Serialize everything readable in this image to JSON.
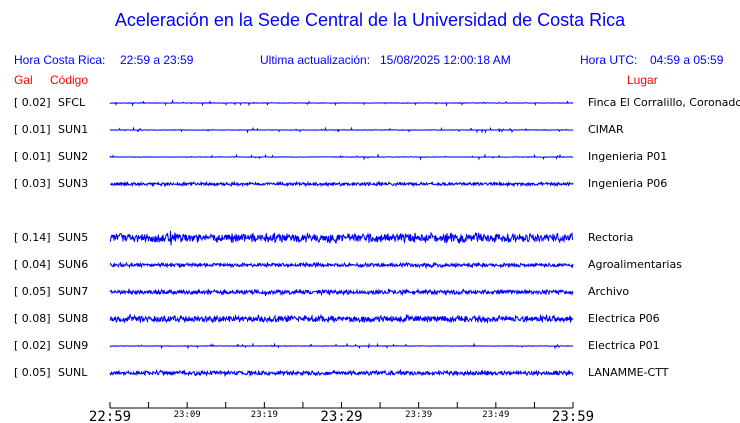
{
  "title": "Aceleración en la Sede Central de la Universidad de Costa Rica",
  "header": {
    "local_label": "Hora Costa Rica:",
    "local_range": "22:59 a 23:59",
    "update_label": "Ultima actualización:",
    "update_value": "15/08/2025 12:00:18 AM",
    "utc_label": "Hora UTC:",
    "utc_range": "04:59 a 05:59"
  },
  "columns": {
    "gal": "Gal",
    "code": "Código",
    "place": "Lugar"
  },
  "trace_color": "#0000ff",
  "stations": [
    {
      "gal": "[   0.02]",
      "code": "SFCL",
      "place": "Finca El Corralillo, Coronado",
      "amp": 0.02,
      "row": 0
    },
    {
      "gal": "[   0.01]",
      "code": "SUN1",
      "place": "CIMAR",
      "amp": 0.01,
      "row": 1
    },
    {
      "gal": "[   0.01]",
      "code": "SUN2",
      "place": "Ingenieria P01",
      "amp": 0.01,
      "row": 2
    },
    {
      "gal": "[   0.03]",
      "code": "SUN3",
      "place": "Ingenieria P06",
      "amp": 0.03,
      "row": 3
    },
    {
      "gal": "[   0.14]",
      "code": "SUN5",
      "place": "Rectoria",
      "amp": 0.14,
      "row": 5
    },
    {
      "gal": "[   0.04]",
      "code": "SUN6",
      "place": "Agroalimentarias",
      "amp": 0.04,
      "row": 6
    },
    {
      "gal": "[   0.05]",
      "code": "SUN7",
      "place": "Archivo",
      "amp": 0.05,
      "row": 7
    },
    {
      "gal": "[   0.08]",
      "code": "SUN8",
      "place": "Electrica P06",
      "amp": 0.08,
      "row": 8
    },
    {
      "gal": "[   0.02]",
      "code": "SUN9",
      "place": "Electrica P01",
      "amp": 0.02,
      "row": 9
    },
    {
      "gal": "[   0.05]",
      "code": "SUNL",
      "place": "LANAMME-CTT",
      "amp": 0.05,
      "row": 10
    }
  ],
  "time_axis": {
    "ticks": [
      "22:59",
      "23:09",
      "23:19",
      "23:29",
      "23:39",
      "23:49",
      "23:59"
    ],
    "major": [
      "22:59",
      "23:29",
      "23:59"
    ]
  }
}
